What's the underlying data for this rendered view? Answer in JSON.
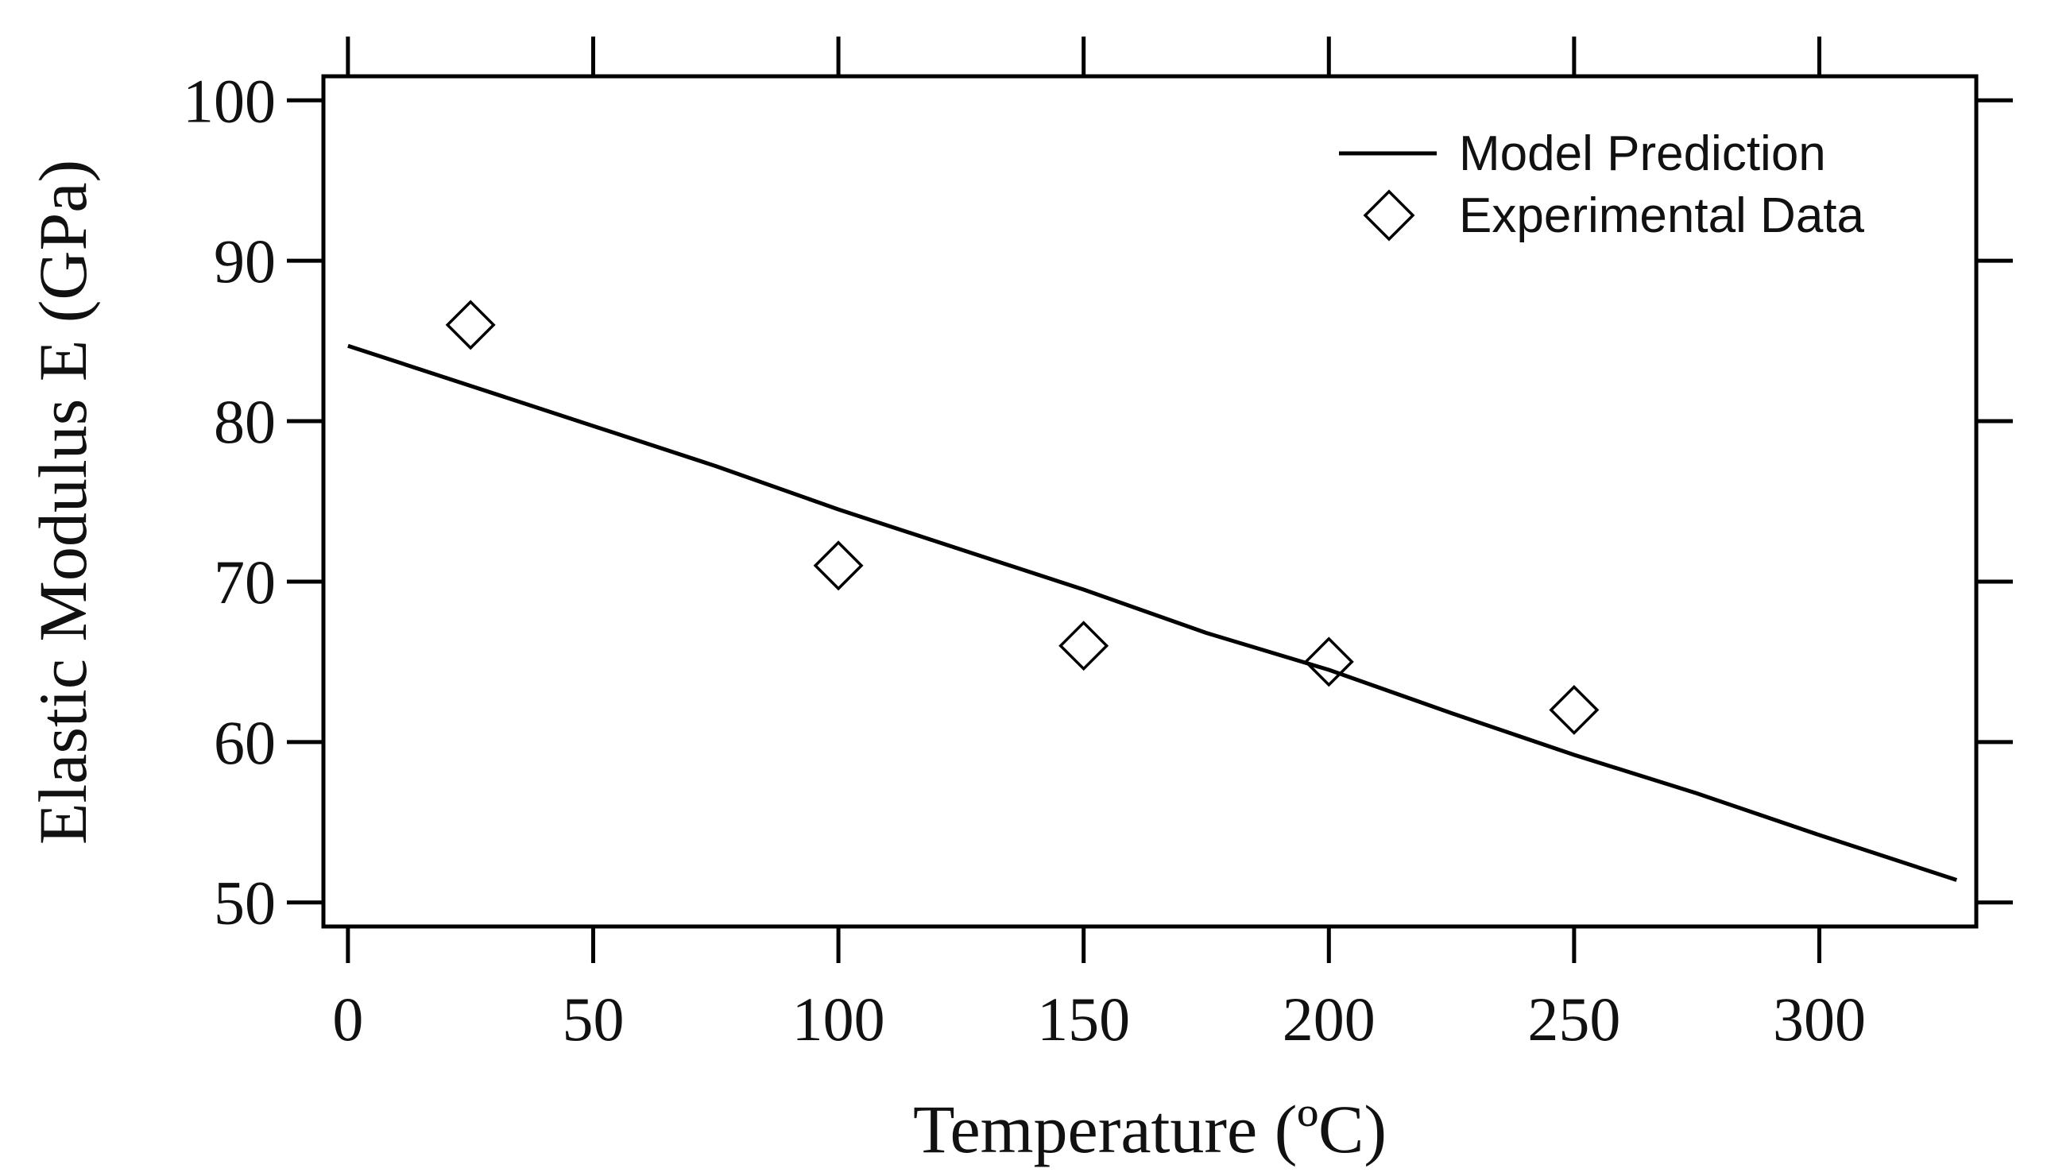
{
  "chart_data": {
    "type": "scatter",
    "title": "",
    "xlabel": "Temperature (ºC)",
    "ylabel": "Elastic Modulus E (GPa)",
    "xlim": [
      -5,
      332
    ],
    "ylim": [
      48.5,
      101.5
    ],
    "xticks": [
      0,
      50,
      100,
      150,
      200,
      250,
      300
    ],
    "yticks": [
      50,
      60,
      70,
      80,
      90,
      100
    ],
    "grid": false,
    "legend_position": "top-right",
    "series": [
      {
        "name": "Model Prediction",
        "kind": "line",
        "color": "#000000",
        "x": [
          0,
          25,
          50,
          75,
          100,
          125,
          150,
          175,
          200,
          225,
          250,
          275,
          300,
          328
        ],
        "y": [
          84.7,
          82.2,
          79.7,
          77.2,
          74.5,
          72.0,
          69.5,
          66.8,
          64.5,
          61.8,
          59.2,
          56.8,
          54.2,
          51.4
        ]
      },
      {
        "name": "Experimental Data",
        "kind": "scatter",
        "marker": "diamond-open",
        "color": "#000000",
        "x": [
          25,
          100,
          150,
          200,
          250
        ],
        "y": [
          86,
          71,
          66,
          65,
          62
        ]
      }
    ]
  }
}
